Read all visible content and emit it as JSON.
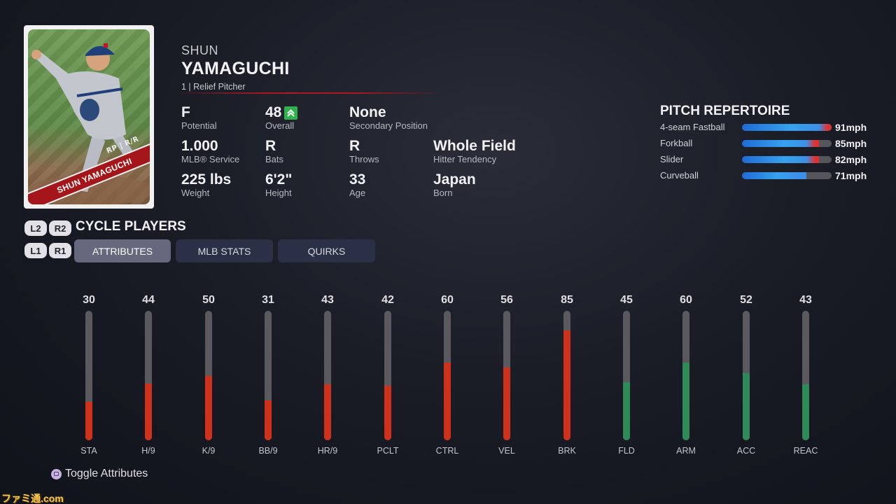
{
  "card": {
    "position_label": "RP | R/R",
    "banner_name": "SHUN YAMAGUCHI"
  },
  "player": {
    "first_name": "SHUN",
    "last_name": "YAMAGUCHI",
    "subline": "1 | Relief Pitcher"
  },
  "info": [
    {
      "value": "F",
      "label": "Potential"
    },
    {
      "value": "48",
      "label": "Overall",
      "badge_icon": "arrow-up-icon"
    },
    {
      "value": "None",
      "label": "Secondary Position"
    },
    {
      "value": "1.000",
      "label": "MLB® Service"
    },
    {
      "value": "R",
      "label": "Bats"
    },
    {
      "value": "R",
      "label": "Throws"
    },
    {
      "value": "Whole Field",
      "label": "Hitter Tendency"
    },
    {
      "value": "225 lbs",
      "label": "Weight"
    },
    {
      "value": "6'2\"",
      "label": "Height"
    },
    {
      "value": "33",
      "label": "Age"
    },
    {
      "value": "Japan",
      "label": "Born"
    }
  ],
  "pitch_repertoire": {
    "title": "PITCH REPERTOIRE",
    "pitches": [
      {
        "name": "4-seam Fastball",
        "speed": "91mph",
        "mph": 91,
        "level": 1.0
      },
      {
        "name": "Forkball",
        "speed": "85mph",
        "mph": 85,
        "level": 0.86
      },
      {
        "name": "Slider",
        "speed": "82mph",
        "mph": 82,
        "level": 0.86
      },
      {
        "name": "Curveball",
        "speed": "71mph",
        "mph": 71,
        "level": 0.72
      }
    ]
  },
  "controls": {
    "l2": "L2",
    "r2": "R2",
    "l1": "L1",
    "r1": "R1",
    "cycle_label": "CYCLE PLAYERS"
  },
  "tabs": [
    {
      "label": "ATTRIBUTES",
      "active": true
    },
    {
      "label": "MLB STATS",
      "active": false
    },
    {
      "label": "QUIRKS",
      "active": false
    }
  ],
  "attributes": [
    {
      "label": "STA",
      "value": 30,
      "color": "red"
    },
    {
      "label": "H/9",
      "value": 44,
      "color": "red"
    },
    {
      "label": "K/9",
      "value": 50,
      "color": "red"
    },
    {
      "label": "BB/9",
      "value": 31,
      "color": "red"
    },
    {
      "label": "HR/9",
      "value": 43,
      "color": "red"
    },
    {
      "label": "PCLT",
      "value": 42,
      "color": "red"
    },
    {
      "label": "CTRL",
      "value": 60,
      "color": "red"
    },
    {
      "label": "VEL",
      "value": 56,
      "color": "red"
    },
    {
      "label": "BRK",
      "value": 85,
      "color": "red"
    },
    {
      "label": "FLD",
      "value": 45,
      "color": "green"
    },
    {
      "label": "ARM",
      "value": 60,
      "color": "green"
    },
    {
      "label": "ACC",
      "value": 52,
      "color": "green"
    },
    {
      "label": "REAC",
      "value": 43,
      "color": "green"
    }
  ],
  "attribute_max": 100,
  "footer": {
    "toggle_label": "Toggle Attributes",
    "watermark": "ファミ通.com"
  },
  "colors": {
    "accent_red": "#d0311a",
    "accent_green": "#2e8b57",
    "pitch_blue": "#36a2ee",
    "overall_up": "#2fb24c"
  }
}
